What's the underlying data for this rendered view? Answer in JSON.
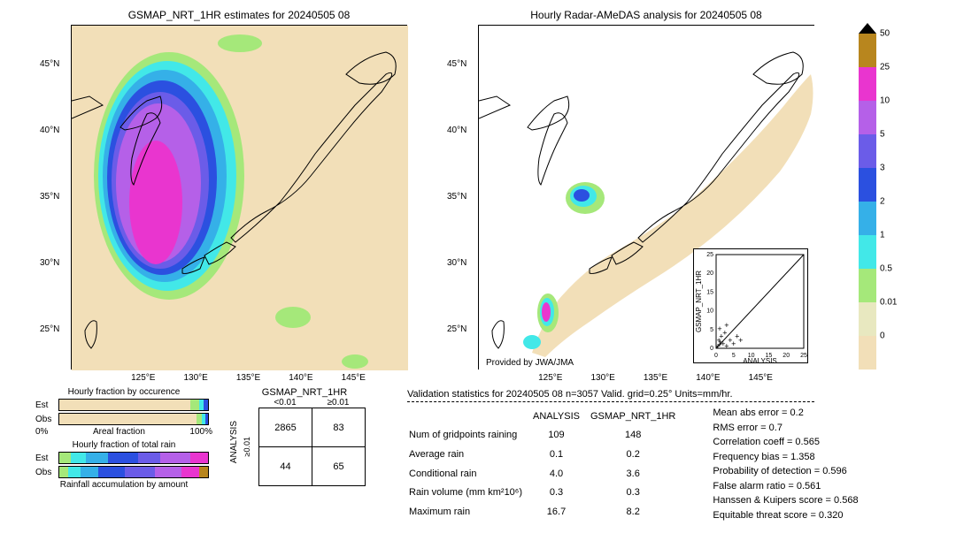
{
  "left_map": {
    "title": "GSMAP_NRT_1HR estimates for 20240505 08",
    "xlim": [
      118,
      150
    ],
    "ylim": [
      22,
      48
    ],
    "xticks": [
      "125°E",
      "130°E",
      "135°E",
      "140°E",
      "145°E"
    ],
    "yticks": [
      "25°N",
      "30°N",
      "35°N",
      "40°N",
      "45°N"
    ],
    "xtick_vals": [
      125,
      130,
      135,
      140,
      145
    ],
    "ytick_vals": [
      25,
      30,
      35,
      40,
      45
    ],
    "bg_color": "#f2dfb8"
  },
  "right_map": {
    "title": "Hourly Radar-AMeDAS analysis for 20240505 08",
    "xlim": [
      118,
      150
    ],
    "ylim": [
      22,
      48
    ],
    "xticks": [
      "125°E",
      "130°E",
      "135°E",
      "140°E",
      "145°E"
    ],
    "yticks": [
      "25°N",
      "30°N",
      "35°N",
      "40°N",
      "45°N"
    ],
    "xtick_vals": [
      125,
      130,
      135,
      140,
      145
    ],
    "ytick_vals": [
      25,
      30,
      35,
      40,
      45
    ],
    "attribution": "Provided by JWA/JMA",
    "bg_color": "#ffffff"
  },
  "scatter_inset": {
    "xlabel": "ANALYSIS",
    "ylabel": "GSMAP_NRT_1HR",
    "xticks": [
      0,
      5,
      10,
      15,
      20,
      25
    ],
    "yticks": [
      0,
      5,
      10,
      15,
      20,
      25
    ],
    "points": [
      [
        0.5,
        0.4
      ],
      [
        1,
        0.8
      ],
      [
        1.2,
        1.5
      ],
      [
        2,
        1
      ],
      [
        0.8,
        2
      ],
      [
        3,
        0.5
      ],
      [
        1.5,
        3
      ],
      [
        4,
        2
      ],
      [
        2.5,
        4
      ],
      [
        5,
        1
      ],
      [
        1,
        5
      ],
      [
        6,
        3
      ],
      [
        3,
        6
      ],
      [
        7,
        2
      ]
    ],
    "line": {
      "x1": 0,
      "y1": 0,
      "x2": 25,
      "y2": 25
    }
  },
  "colorbar": {
    "labels": [
      "50",
      "25",
      "10",
      "5",
      "3",
      "2",
      "1",
      "0.5",
      "0.01",
      "0"
    ],
    "colors": [
      "#b8861e",
      "#e935cf",
      "#b560e8",
      "#6b5ce8",
      "#2b50e0",
      "#35b0e8",
      "#42e8e8",
      "#a5e87a",
      "#e8e8c0",
      "#f2dfb8"
    ],
    "arrow_color": "#000000"
  },
  "hourly_fraction": {
    "occurrence": {
      "title": "Hourly fraction by occurence",
      "rows": [
        {
          "label": "Est",
          "segs": [
            {
              "w": 88,
              "c": "#f2dfb8"
            },
            {
              "w": 6,
              "c": "#a5e87a"
            },
            {
              "w": 3,
              "c": "#42e8e8"
            },
            {
              "w": 3,
              "c": "#2b50e0"
            }
          ]
        },
        {
          "label": "Obs",
          "segs": [
            {
              "w": 92,
              "c": "#f2dfb8"
            },
            {
              "w": 4,
              "c": "#a5e87a"
            },
            {
              "w": 2,
              "c": "#42e8e8"
            },
            {
              "w": 2,
              "c": "#2b50e0"
            }
          ]
        }
      ],
      "xlabel": "Areal fraction",
      "xleft": "0%",
      "xright": "100%"
    },
    "total_rain": {
      "title": "Hourly fraction of total rain",
      "rows": [
        {
          "label": "Est",
          "segs": [
            {
              "w": 8,
              "c": "#a5e87a"
            },
            {
              "w": 10,
              "c": "#42e8e8"
            },
            {
              "w": 15,
              "c": "#35b0e8"
            },
            {
              "w": 20,
              "c": "#2b50e0"
            },
            {
              "w": 15,
              "c": "#6b5ce8"
            },
            {
              "w": 20,
              "c": "#b560e8"
            },
            {
              "w": 12,
              "c": "#e935cf"
            }
          ]
        },
        {
          "label": "Obs",
          "segs": [
            {
              "w": 6,
              "c": "#a5e87a"
            },
            {
              "w": 8,
              "c": "#42e8e8"
            },
            {
              "w": 12,
              "c": "#35b0e8"
            },
            {
              "w": 18,
              "c": "#2b50e0"
            },
            {
              "w": 20,
              "c": "#6b5ce8"
            },
            {
              "w": 18,
              "c": "#b560e8"
            },
            {
              "w": 12,
              "c": "#e935cf"
            },
            {
              "w": 6,
              "c": "#b8861e"
            }
          ]
        }
      ],
      "footer": "Rainfall accumulation by amount"
    }
  },
  "contingency": {
    "col_header": "GSMAP_NRT_1HR",
    "row_header": "ANALYSIS",
    "sub_cols": [
      "<0.01",
      "≥0.01"
    ],
    "sub_rows": [
      "≥0.01",
      "<0.01"
    ],
    "cells": [
      [
        "2865",
        "83"
      ],
      [
        "44",
        "65"
      ]
    ]
  },
  "validation": {
    "title": "Validation statistics for 20240505 08  n=3057 Valid. grid=0.25°  Units=mm/hr.",
    "table": {
      "cols": [
        "",
        "ANALYSIS",
        "GSMAP_NRT_1HR"
      ],
      "rows": [
        [
          "Num of gridpoints raining",
          "109",
          "148"
        ],
        [
          "Average rain",
          "0.1",
          "0.2"
        ],
        [
          "Conditional rain",
          "4.0",
          "3.6"
        ],
        [
          "Rain volume (mm km²10⁶)",
          "0.3",
          "0.3"
        ],
        [
          "Maximum rain",
          "16.7",
          "8.2"
        ]
      ]
    },
    "stats": [
      {
        "label": "Mean abs error =",
        "val": "0.2"
      },
      {
        "label": "RMS error =",
        "val": "0.7"
      },
      {
        "label": "Correlation coeff =",
        "val": "0.565"
      },
      {
        "label": "Frequency bias =",
        "val": "1.358"
      },
      {
        "label": "Probability of detection =",
        "val": "0.596"
      },
      {
        "label": "False alarm ratio =",
        "val": "0.561"
      },
      {
        "label": "Hanssen & Kuipers score =",
        "val": "0.568"
      },
      {
        "label": "Equitable threat score =",
        "val": "0.320"
      }
    ]
  }
}
